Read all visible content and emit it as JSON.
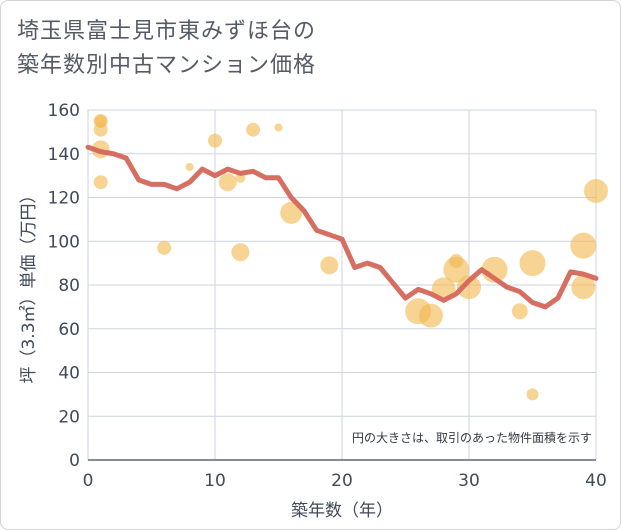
{
  "title_line1": "埼玉県富士見市東みずほ台の",
  "title_line2": "築年数別中古マンション価格",
  "chart_data": {
    "type": "scatter",
    "title": "埼玉県富士見市東みずほ台の築年数別中古マンション価格",
    "xlabel": "築年数（年）",
    "ylabel": "坪（3.3㎡）単価（万円）",
    "xlim": [
      0,
      40
    ],
    "ylim": [
      0,
      160
    ],
    "xticks": [
      0,
      10,
      20,
      30,
      40
    ],
    "yticks": [
      0,
      20,
      40,
      60,
      80,
      100,
      120,
      140,
      160
    ],
    "grid": true,
    "note": "円の大きさは、取引のあった物件面積を示す",
    "colors": {
      "bubble": "#f2b84d",
      "line": "#d4675a",
      "grid": "#cdd6e0"
    },
    "bubbles": [
      {
        "x": 1,
        "y": 155,
        "size": 7
      },
      {
        "x": 1,
        "y": 155,
        "size": 6
      },
      {
        "x": 1,
        "y": 151,
        "size": 7
      },
      {
        "x": 1,
        "y": 142,
        "size": 9
      },
      {
        "x": 1,
        "y": 127,
        "size": 7
      },
      {
        "x": 6,
        "y": 97,
        "size": 7
      },
      {
        "x": 8,
        "y": 134,
        "size": 4
      },
      {
        "x": 10,
        "y": 146,
        "size": 7
      },
      {
        "x": 11,
        "y": 127,
        "size": 9
      },
      {
        "x": 12,
        "y": 129,
        "size": 5
      },
      {
        "x": 12,
        "y": 95,
        "size": 9
      },
      {
        "x": 13,
        "y": 151,
        "size": 7
      },
      {
        "x": 15,
        "y": 152,
        "size": 4
      },
      {
        "x": 16,
        "y": 113,
        "size": 11
      },
      {
        "x": 19,
        "y": 89,
        "size": 9
      },
      {
        "x": 26,
        "y": 68,
        "size": 13
      },
      {
        "x": 27,
        "y": 66,
        "size": 12
      },
      {
        "x": 28,
        "y": 78,
        "size": 12
      },
      {
        "x": 29,
        "y": 91,
        "size": 7
      },
      {
        "x": 29,
        "y": 87,
        "size": 13
      },
      {
        "x": 30,
        "y": 79,
        "size": 12
      },
      {
        "x": 32,
        "y": 87,
        "size": 13
      },
      {
        "x": 34,
        "y": 68,
        "size": 8
      },
      {
        "x": 35,
        "y": 90,
        "size": 13
      },
      {
        "x": 35,
        "y": 30,
        "size": 6
      },
      {
        "x": 39,
        "y": 98,
        "size": 13
      },
      {
        "x": 39,
        "y": 79,
        "size": 12
      },
      {
        "x": 40,
        "y": 123,
        "size": 12
      }
    ],
    "series": [
      {
        "values": [
          {
            "x": 0,
            "y": 143
          },
          {
            "x": 1,
            "y": 141
          },
          {
            "x": 2,
            "y": 140
          },
          {
            "x": 3,
            "y": 138
          },
          {
            "x": 4,
            "y": 128
          },
          {
            "x": 5,
            "y": 126
          },
          {
            "x": 6,
            "y": 126
          },
          {
            "x": 7,
            "y": 124
          },
          {
            "x": 8,
            "y": 127
          },
          {
            "x": 9,
            "y": 133
          },
          {
            "x": 10,
            "y": 130
          },
          {
            "x": 11,
            "y": 133
          },
          {
            "x": 12,
            "y": 131
          },
          {
            "x": 13,
            "y": 132
          },
          {
            "x": 14,
            "y": 129
          },
          {
            "x": 15,
            "y": 129
          },
          {
            "x": 16,
            "y": 120
          },
          {
            "x": 17,
            "y": 114
          },
          {
            "x": 18,
            "y": 105
          },
          {
            "x": 19,
            "y": 103
          },
          {
            "x": 20,
            "y": 101
          },
          {
            "x": 21,
            "y": 88
          },
          {
            "x": 22,
            "y": 90
          },
          {
            "x": 23,
            "y": 88
          },
          {
            "x": 24,
            "y": 81
          },
          {
            "x": 25,
            "y": 74
          },
          {
            "x": 26,
            "y": 78
          },
          {
            "x": 27,
            "y": 76
          },
          {
            "x": 28,
            "y": 73
          },
          {
            "x": 29,
            "y": 76
          },
          {
            "x": 30,
            "y": 82
          },
          {
            "x": 31,
            "y": 87
          },
          {
            "x": 32,
            "y": 83
          },
          {
            "x": 33,
            "y": 79
          },
          {
            "x": 34,
            "y": 77
          },
          {
            "x": 35,
            "y": 72
          },
          {
            "x": 36,
            "y": 70
          },
          {
            "x": 37,
            "y": 74
          },
          {
            "x": 38,
            "y": 86
          },
          {
            "x": 39,
            "y": 85
          },
          {
            "x": 40,
            "y": 83
          }
        ]
      }
    ]
  }
}
